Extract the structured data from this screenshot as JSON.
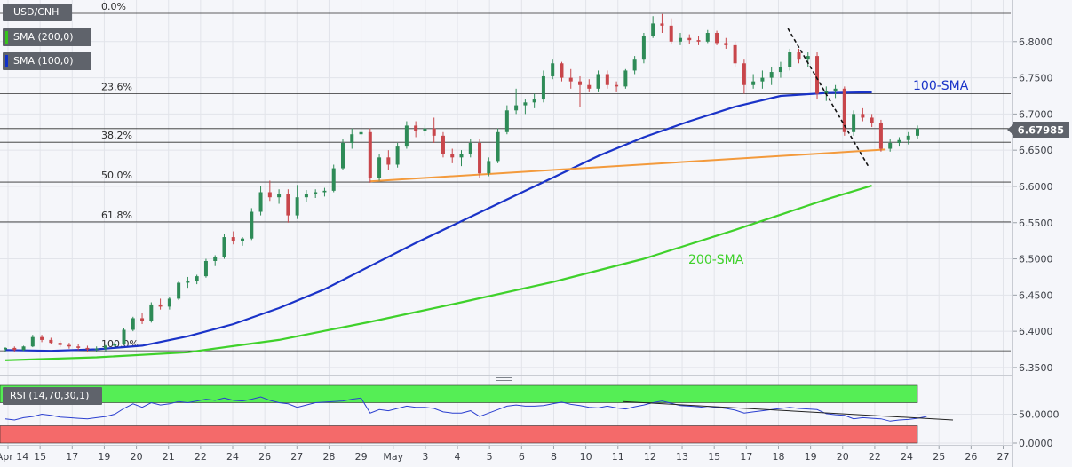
{
  "legend": {
    "symbol": "USD/CNH",
    "sma200": "SMA (200,0)",
    "sma100": "SMA (100,0)",
    "sma200_color": "#36c41c",
    "sma100_color": "#1030c8"
  },
  "rsi_label": "RSI (14,70,30,1)",
  "price_tag": "6.67985",
  "colors": {
    "up_candle": "#2e8b57",
    "down_candle": "#c8464b",
    "sma100": "#1a33c8",
    "sma200": "#3fd12b",
    "support": "#f39a3c",
    "rsi_line": "#2b3fd0",
    "rsi_overbought_zone": "#55ee55",
    "rsi_oversold_zone": "#f46a6a",
    "price_tag_bg": "#5f636b"
  },
  "chart_data": [
    {
      "type": "candlestick",
      "title": "USD/CNH",
      "x_ticks": [
        "Apr 14",
        "15",
        "17",
        "19",
        "20",
        "21",
        "22",
        "24",
        "26",
        "27",
        "28",
        "29",
        "May",
        "3",
        "4",
        "5",
        "6",
        "8",
        "10",
        "11",
        "12",
        "13",
        "15",
        "17",
        "18",
        "19",
        "20",
        "22",
        "24",
        "25",
        "26",
        "27"
      ],
      "y_ticks": [
        "6.3500",
        "6.4000",
        "6.4500",
        "6.5000",
        "6.5500",
        "6.6000",
        "6.6500",
        "6.7000",
        "6.7500",
        "6.8000"
      ],
      "ylim": [
        6.345,
        6.85
      ],
      "last_price": 6.67985,
      "fibonacci_levels": [
        {
          "label": "0.0%",
          "value": 6.839
        },
        {
          "label": "23.6%",
          "value": 6.728
        },
        {
          "label": "38.2%",
          "value": 6.661
        },
        {
          "label": "50.0%",
          "value": 6.606
        },
        {
          "label": "61.8%",
          "value": 6.551
        },
        {
          "label": "100.0%",
          "value": 6.373
        }
      ],
      "annotations": [
        "100-SMA",
        "200-SMA"
      ],
      "sma100": [
        [
          0,
          6.374
        ],
        [
          5,
          6.373
        ],
        [
          10,
          6.375
        ],
        [
          15,
          6.38
        ],
        [
          20,
          6.393
        ],
        [
          25,
          6.41
        ],
        [
          30,
          6.432
        ],
        [
          35,
          6.458
        ],
        [
          40,
          6.49
        ],
        [
          45,
          6.522
        ],
        [
          50,
          6.552
        ],
        [
          55,
          6.582
        ],
        [
          60,
          6.612
        ],
        [
          65,
          6.642
        ],
        [
          70,
          6.668
        ],
        [
          75,
          6.69
        ],
        [
          80,
          6.71
        ],
        [
          85,
          6.725
        ],
        [
          90,
          6.729
        ],
        [
          95,
          6.73
        ]
      ],
      "sma200": [
        [
          0,
          6.36
        ],
        [
          10,
          6.364
        ],
        [
          20,
          6.371
        ],
        [
          30,
          6.388
        ],
        [
          40,
          6.413
        ],
        [
          50,
          6.44
        ],
        [
          60,
          6.468
        ],
        [
          70,
          6.5
        ],
        [
          80,
          6.54
        ],
        [
          90,
          6.582
        ],
        [
          95,
          6.601
        ]
      ],
      "resistance_line": {
        "points": [
          [
            85.8,
            6.818
          ],
          [
            94.6,
            6.628
          ]
        ],
        "style": "dashed"
      },
      "support_line": {
        "points": [
          [
            40,
            6.607
          ],
          [
            96.5,
            6.651
          ]
        ]
      },
      "candles": [
        [
          6.375,
          6.378,
          6.372,
          6.377
        ],
        [
          6.377,
          6.379,
          6.372,
          6.374
        ],
        [
          6.374,
          6.38,
          6.373,
          6.379
        ],
        [
          6.379,
          6.395,
          6.378,
          6.392
        ],
        [
          6.392,
          6.395,
          6.385,
          6.388
        ],
        [
          6.388,
          6.391,
          6.382,
          6.384
        ],
        [
          6.384,
          6.387,
          6.378,
          6.381
        ],
        [
          6.381,
          6.384,
          6.376,
          6.379
        ],
        [
          6.379,
          6.382,
          6.374,
          6.377
        ],
        [
          6.377,
          6.38,
          6.372,
          6.375
        ],
        [
          6.375,
          6.379,
          6.371,
          6.376
        ],
        [
          6.376,
          6.381,
          6.372,
          6.38
        ],
        [
          6.38,
          6.384,
          6.377,
          6.382
        ],
        [
          6.382,
          6.405,
          6.381,
          6.402
        ],
        [
          6.402,
          6.42,
          6.4,
          6.418
        ],
        [
          6.418,
          6.425,
          6.41,
          6.414
        ],
        [
          6.414,
          6.44,
          6.412,
          6.437
        ],
        [
          6.437,
          6.445,
          6.43,
          6.434
        ],
        [
          6.434,
          6.448,
          6.43,
          6.445
        ],
        [
          6.445,
          6.47,
          6.443,
          6.467
        ],
        [
          6.467,
          6.475,
          6.46,
          6.47
        ],
        [
          6.47,
          6.478,
          6.465,
          6.476
        ],
        [
          6.476,
          6.5,
          6.474,
          6.497
        ],
        [
          6.497,
          6.505,
          6.49,
          6.502
        ],
        [
          6.502,
          6.535,
          6.5,
          6.53
        ],
        [
          6.53,
          6.538,
          6.52,
          6.525
        ],
        [
          6.525,
          6.53,
          6.518,
          6.528
        ],
        [
          6.528,
          6.57,
          6.526,
          6.565
        ],
        [
          6.565,
          6.6,
          6.56,
          6.592
        ],
        [
          6.592,
          6.608,
          6.58,
          6.585
        ],
        [
          6.585,
          6.596,
          6.576,
          6.59
        ],
        [
          6.59,
          6.596,
          6.55,
          6.56
        ],
        [
          6.56,
          6.602,
          6.555,
          6.585
        ],
        [
          6.585,
          6.595,
          6.578,
          6.59
        ],
        [
          6.59,
          6.596,
          6.584,
          6.592
        ],
        [
          6.592,
          6.598,
          6.586,
          6.594
        ],
        [
          6.594,
          6.63,
          6.592,
          6.625
        ],
        [
          6.625,
          6.665,
          6.622,
          6.66
        ],
        [
          6.66,
          6.68,
          6.652,
          6.672
        ],
        [
          6.672,
          6.693,
          6.665,
          6.675
        ],
        [
          6.675,
          6.68,
          6.605,
          6.612
        ],
        [
          6.612,
          6.645,
          6.608,
          6.64
        ],
        [
          6.64,
          6.65,
          6.622,
          6.63
        ],
        [
          6.63,
          6.66,
          6.626,
          6.655
        ],
        [
          6.655,
          6.69,
          6.652,
          6.684
        ],
        [
          6.684,
          6.69,
          6.668,
          6.676
        ],
        [
          6.676,
          6.685,
          6.67,
          6.68
        ],
        [
          6.68,
          6.695,
          6.66,
          6.67
        ],
        [
          6.67,
          6.675,
          6.64,
          6.645
        ],
        [
          6.645,
          6.652,
          6.632,
          6.64
        ],
        [
          6.64,
          6.65,
          6.628,
          6.645
        ],
        [
          6.645,
          6.665,
          6.64,
          6.66
        ],
        [
          6.66,
          6.665,
          6.612,
          6.618
        ],
        [
          6.618,
          6.64,
          6.614,
          6.635
        ],
        [
          6.635,
          6.68,
          6.632,
          6.675
        ],
        [
          6.675,
          6.712,
          6.672,
          6.705
        ],
        [
          6.705,
          6.735,
          6.7,
          6.712
        ],
        [
          6.712,
          6.72,
          6.7,
          6.716
        ],
        [
          6.716,
          6.728,
          6.708,
          6.72
        ],
        [
          6.72,
          6.76,
          6.716,
          6.752
        ],
        [
          6.752,
          6.775,
          6.748,
          6.77
        ],
        [
          6.77,
          6.772,
          6.745,
          6.75
        ],
        [
          6.75,
          6.762,
          6.735,
          6.745
        ],
        [
          6.745,
          6.752,
          6.71,
          6.74
        ],
        [
          6.74,
          6.748,
          6.73,
          6.735
        ],
        [
          6.735,
          6.76,
          6.73,
          6.755
        ],
        [
          6.755,
          6.76,
          6.735,
          6.74
        ],
        [
          6.74,
          6.745,
          6.73,
          6.738
        ],
        [
          6.738,
          6.762,
          6.735,
          6.76
        ],
        [
          6.76,
          6.78,
          6.755,
          6.775
        ],
        [
          6.775,
          6.812,
          6.77,
          6.808
        ],
        [
          6.808,
          6.835,
          6.805,
          6.825
        ],
        [
          6.825,
          6.838,
          6.812,
          6.822
        ],
        [
          6.822,
          6.832,
          6.796,
          6.8
        ],
        [
          6.8,
          6.812,
          6.795,
          6.805
        ],
        [
          6.805,
          6.81,
          6.797,
          6.802
        ],
        [
          6.802,
          6.808,
          6.795,
          6.8
        ],
        [
          6.8,
          6.816,
          6.798,
          6.812
        ],
        [
          6.812,
          6.815,
          6.795,
          6.798
        ],
        [
          6.798,
          6.805,
          6.79,
          6.795
        ],
        [
          6.795,
          6.8,
          6.765,
          6.77
        ],
        [
          6.77,
          6.775,
          6.728,
          6.74
        ],
        [
          6.74,
          6.755,
          6.735,
          6.745
        ],
        [
          6.745,
          6.76,
          6.735,
          6.75
        ],
        [
          6.75,
          6.765,
          6.74,
          6.758
        ],
        [
          6.758,
          6.772,
          6.75,
          6.765
        ],
        [
          6.765,
          6.79,
          6.76,
          6.785
        ],
        [
          6.785,
          6.79,
          6.77,
          6.775
        ],
        [
          6.775,
          6.785,
          6.765,
          6.78
        ],
        [
          6.78,
          6.785,
          6.72,
          6.728
        ],
        [
          6.728,
          6.738,
          6.718,
          6.732
        ],
        [
          6.732,
          6.74,
          6.722,
          6.735
        ],
        [
          6.735,
          6.738,
          6.67,
          6.675
        ],
        [
          6.675,
          6.705,
          6.67,
          6.7
        ],
        [
          6.7,
          6.708,
          6.69,
          6.695
        ],
        [
          6.695,
          6.7,
          6.682,
          6.688
        ],
        [
          6.688,
          6.692,
          6.648,
          6.652
        ],
        [
          6.652,
          6.665,
          6.648,
          6.66
        ],
        [
          6.66,
          6.668,
          6.655,
          6.664
        ],
        [
          6.664,
          6.675,
          6.658,
          6.67
        ],
        [
          6.67,
          6.684,
          6.665,
          6.68
        ]
      ]
    },
    {
      "type": "line",
      "title": "RSI (14,70,30,1)",
      "y_ticks": [
        "0.0000",
        "50.0000"
      ],
      "ylim": [
        0,
        100
      ],
      "zones": {
        "overbought": 70,
        "oversold": 30
      },
      "series": [
        {
          "values": [
            42,
            40,
            44,
            46,
            50,
            48,
            45,
            44,
            43,
            42,
            44,
            46,
            50,
            60,
            68,
            62,
            70,
            66,
            68,
            72,
            70,
            73,
            76,
            74,
            78,
            74,
            73,
            76,
            80,
            74,
            70,
            68,
            62,
            66,
            70,
            71,
            72,
            73,
            76,
            78,
            52,
            58,
            56,
            60,
            64,
            62,
            62,
            60,
            54,
            52,
            52,
            56,
            46,
            52,
            58,
            64,
            66,
            64,
            64,
            65,
            68,
            71,
            67,
            65,
            62,
            61,
            64,
            61,
            59,
            63,
            66,
            70,
            73,
            69,
            65,
            64,
            63,
            61,
            62,
            60,
            57,
            52,
            54,
            56,
            58,
            60,
            62,
            60,
            59,
            58,
            51,
            49,
            48,
            42,
            44,
            43,
            42,
            38,
            40,
            41,
            43,
            46
          ]
        }
      ],
      "trend_line": {
        "points": [
          [
            67.7,
            72
          ],
          [
            100,
            40
          ]
        ]
      }
    }
  ]
}
